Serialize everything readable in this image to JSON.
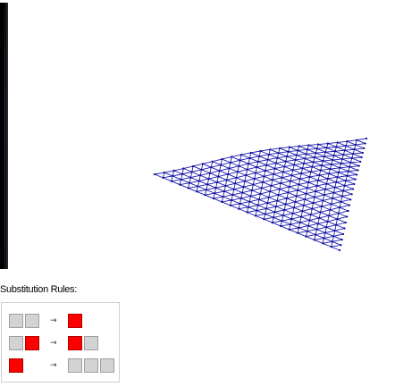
{
  "colors": {
    "mesh": "#1a1ab4",
    "mesh_dark": "#0a0a8c",
    "cell_white": "#d3d3d3",
    "cell_black": "#ff0000"
  },
  "rules_panel": {
    "title": "Substitution Rules:",
    "arrow": "→",
    "rules": [
      {
        "lhs": [
          "white",
          "white"
        ],
        "rhs": [
          "black"
        ]
      },
      {
        "lhs": [
          "white",
          "black"
        ],
        "rhs": [
          "black",
          "white"
        ]
      },
      {
        "lhs": [
          "black"
        ],
        "rhs": [
          "white",
          "white",
          "white"
        ]
      }
    ]
  },
  "icons": {
    "mesh": "triangular-mesh-surface"
  }
}
